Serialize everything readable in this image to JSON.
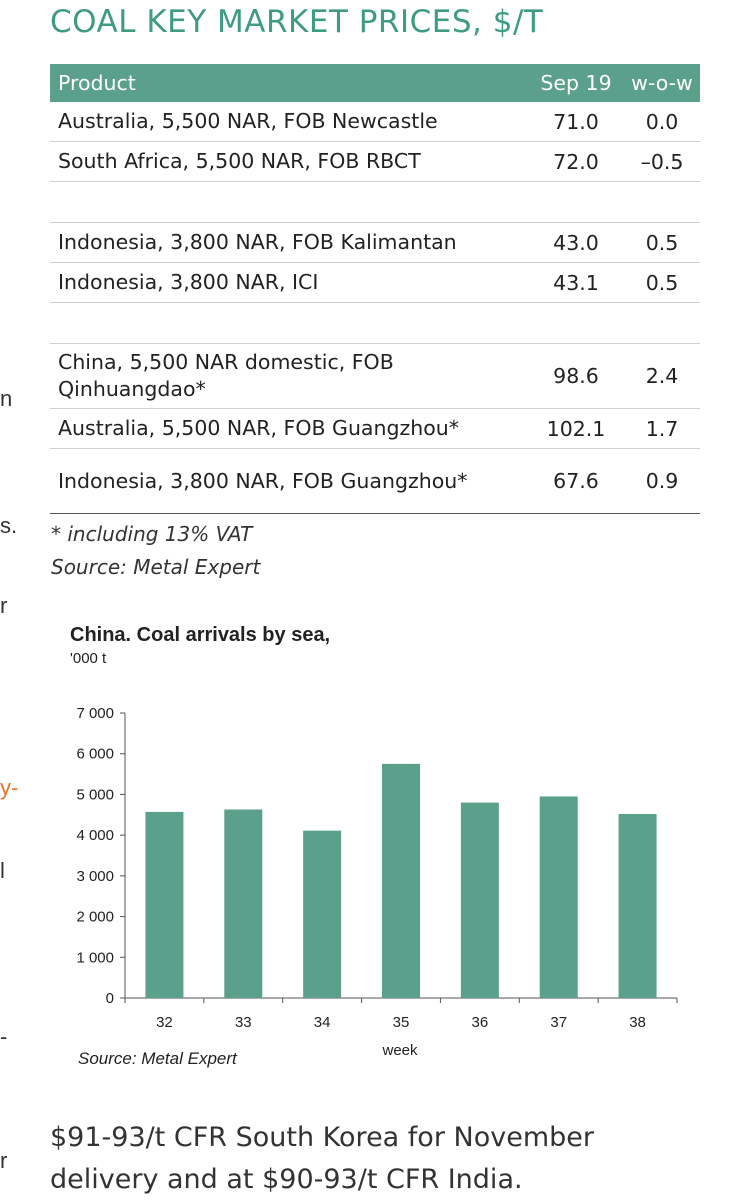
{
  "page_title": "COAL KEY MARKET PRICES, $/T",
  "table": {
    "headers": {
      "product": "Product",
      "price": "Sep 19",
      "wow": "w-o-w"
    },
    "rows": [
      {
        "product": "Australia, 5,500 NAR, FOB Newcastle",
        "price": "71.0",
        "wow": "0.0"
      },
      {
        "product": "South Africa, 5,500 NAR, FOB RBCT",
        "price": "72.0",
        "wow": "–0.5"
      },
      {
        "product": "",
        "price": "",
        "wow": ""
      },
      {
        "product": "Indonesia, 3,800 NAR, FOB Kalimantan",
        "price": "43.0",
        "wow": "0.5"
      },
      {
        "product": "Indonesia, 3,800 NAR, ICI",
        "price": "43.1",
        "wow": "0.5"
      },
      {
        "product": "",
        "price": "",
        "wow": ""
      },
      {
        "product": "China, 5,500 NAR domestic, FOB Qinhuangdao*",
        "price": "98.6",
        "wow": "2.4"
      },
      {
        "product": "Australia, 5,500 NAR, FOB Guangzhou*",
        "price": "102.1",
        "wow": "1.7"
      },
      {
        "product": "Indonesia, 3,800 NAR, FOB Guangzhou*",
        "price": "67.6",
        "wow": "0.9"
      }
    ]
  },
  "footnote": "* including 13% VAT",
  "table_source": "Source: Metal Expert",
  "chart_data": {
    "type": "bar",
    "title": "China. Coal arrivals by sea,",
    "unit_label": "'000 t",
    "categories": [
      "32",
      "33",
      "34",
      "35",
      "36",
      "37",
      "38"
    ],
    "values": [
      4570,
      4630,
      4110,
      5750,
      4800,
      4950,
      4520
    ],
    "ytick_labels": [
      "0",
      "1 000",
      "2 000",
      "3 000",
      "4 000",
      "5 000",
      "6 000",
      "7 000"
    ],
    "ylim": [
      0,
      7000
    ],
    "xlabel": "week",
    "ylabel": "",
    "bar_color": "#5ba08a",
    "grid": false,
    "source": "Source: Metal Expert"
  },
  "body_text": "$91-93/t CFR South Korea for November delivery and at $90-93/t CFR India.",
  "edge_marks": [
    {
      "text": "n",
      "color": "#333333"
    },
    {
      "text": "s.",
      "color": "#333333"
    },
    {
      "text": "r",
      "color": "#333333"
    },
    {
      "text": "y-",
      "color": "#e8742e"
    },
    {
      "text": "l",
      "color": "#333333"
    },
    {
      "text": "-",
      "color": "#333333"
    },
    {
      "text": "r",
      "color": "#333333"
    }
  ]
}
